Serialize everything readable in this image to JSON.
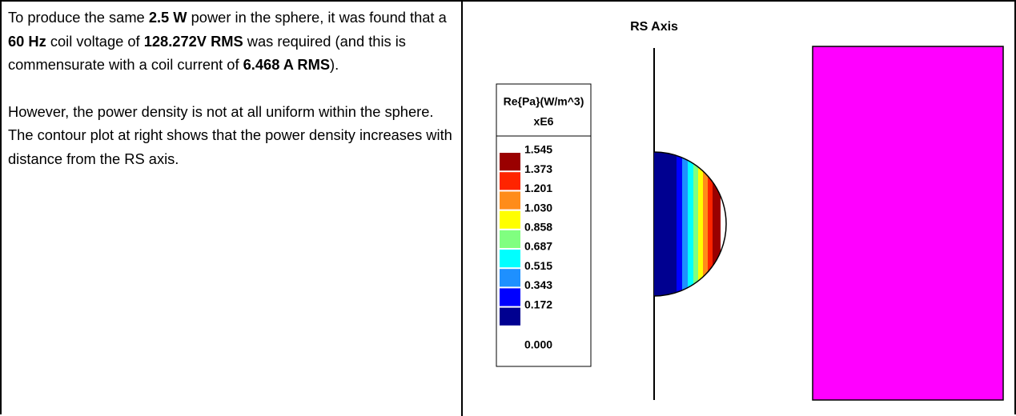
{
  "text_cell": {
    "paragraphs": [
      {
        "runs": [
          {
            "text": "To produce the same ",
            "bold": false
          },
          {
            "text": "2.5 W",
            "bold": true
          },
          {
            "text": " power in the sphere, it was found that a ",
            "bold": false
          },
          {
            "text": "60 Hz",
            "bold": true
          },
          {
            "text": " coil voltage of ",
            "bold": false
          },
          {
            "text": "128.272V RMS",
            "bold": true
          },
          {
            "text": " was required (and this is commensurate with a coil current of ",
            "bold": false
          },
          {
            "text": "6.468 A RMS",
            "bold": true
          },
          {
            "text": ").",
            "bold": false
          }
        ]
      },
      {
        "runs": [
          {
            "text": "However, the power density is not at all uniform within the sphere.  The contour plot at right shows that the power density increases with distance from the RS axis.",
            "bold": false
          }
        ]
      }
    ]
  },
  "figure": {
    "axis_label": "RS Axis",
    "legend": {
      "title": "Re{Pa}(W/m^3)",
      "multiplier": "xE6",
      "levels": [
        "1.545",
        "1.373",
        "1.201",
        "1.030",
        "0.858",
        "0.687",
        "0.515",
        "0.343",
        "0.172",
        "0.000"
      ],
      "colors": [
        "#9a0000",
        "#ff2400",
        "#ff8c1a",
        "#ffff00",
        "#80ff80",
        "#00ffff",
        "#1e90ff",
        "#0000ff",
        "#000090"
      ]
    }
  }
}
